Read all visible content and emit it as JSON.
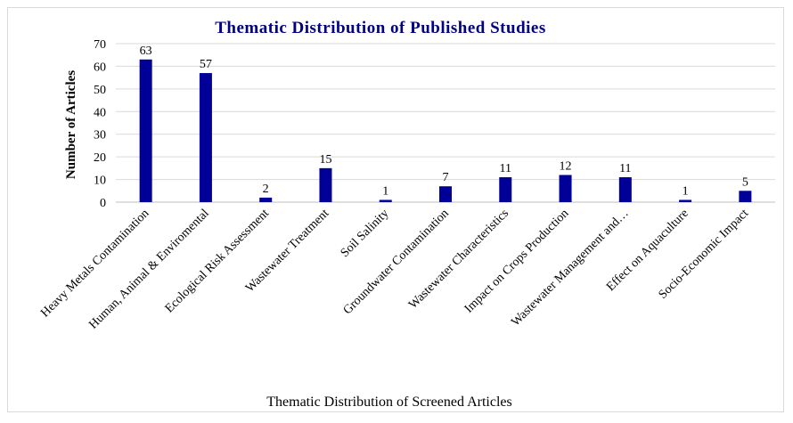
{
  "chart_data": {
    "type": "bar",
    "title": "Thematic Distribution of Published Studies",
    "xlabel": "Thematic Distribution of Screened Articles",
    "ylabel": "Number of Articles",
    "ylim": [
      0,
      70
    ],
    "yticks": [
      0,
      10,
      20,
      30,
      40,
      50,
      60,
      70
    ],
    "grid": true,
    "bar_color": "#000099",
    "categories": [
      "Heavy Metals Contamination",
      "Human, Animal & Enviromental",
      "Ecological Risk Assessment",
      "Wastewater Treatment",
      "Soil Salinity",
      "Groundwater Contamination",
      "Wastewater Characteristics",
      "Impact on Crops Production",
      "Wastewater Management and…",
      "Effect on Aquaculture",
      "Socio-Economic Impact"
    ],
    "values": [
      63,
      57,
      2,
      15,
      1,
      7,
      11,
      12,
      11,
      1,
      5
    ]
  }
}
